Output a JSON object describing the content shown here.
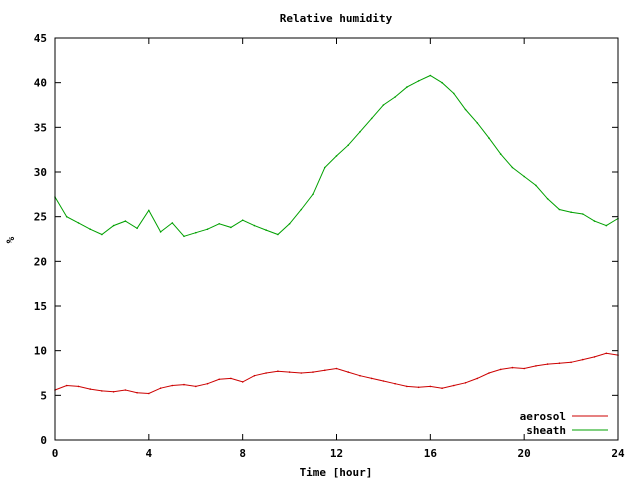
{
  "chart_data": {
    "type": "line",
    "title": "Relative humidity",
    "xlabel": "Time [hour]",
    "ylabel": "%",
    "xlim": [
      0,
      24
    ],
    "ylim": [
      0,
      45
    ],
    "xticks": [
      0,
      4,
      8,
      12,
      16,
      20,
      24
    ],
    "yticks": [
      0,
      5,
      10,
      15,
      20,
      25,
      30,
      35,
      40,
      45
    ],
    "grid": false,
    "legend_position": "bottom-right",
    "series": [
      {
        "name": "aerosol",
        "color": "#cc0000",
        "x": [
          0,
          0.5,
          1,
          1.5,
          2,
          2.5,
          3,
          3.5,
          4,
          4.5,
          5,
          5.5,
          6,
          6.5,
          7,
          7.5,
          8,
          8.5,
          9,
          9.5,
          10,
          10.5,
          11,
          11.5,
          12,
          12.5,
          13,
          13.5,
          14,
          14.5,
          15,
          15.5,
          16,
          16.5,
          17,
          17.5,
          18,
          18.5,
          19,
          19.5,
          20,
          20.5,
          21,
          21.5,
          22,
          22.5,
          23,
          23.5,
          24
        ],
        "y": [
          5.6,
          6.1,
          6.0,
          5.7,
          5.5,
          5.4,
          5.6,
          5.3,
          5.2,
          5.8,
          6.1,
          6.2,
          6.0,
          6.3,
          6.8,
          6.9,
          6.5,
          7.2,
          7.5,
          7.7,
          7.6,
          7.5,
          7.6,
          7.8,
          8.0,
          7.6,
          7.2,
          6.9,
          6.6,
          6.3,
          6.0,
          5.9,
          6.0,
          5.8,
          6.1,
          6.4,
          6.9,
          7.5,
          7.9,
          8.1,
          8.0,
          8.3,
          8.5,
          8.6,
          8.7,
          9.0,
          9.3,
          9.7,
          9.5
        ]
      },
      {
        "name": "sheath",
        "color": "#00a000",
        "x": [
          0,
          0.5,
          1,
          1.5,
          2,
          2.5,
          3,
          3.5,
          4,
          4.5,
          5,
          5.5,
          6,
          6.5,
          7,
          7.5,
          8,
          8.5,
          9,
          9.5,
          10,
          10.5,
          11,
          11.5,
          12,
          12.5,
          13,
          13.5,
          14,
          14.5,
          15,
          15.5,
          16,
          16.5,
          17,
          17.5,
          18,
          18.5,
          19,
          19.5,
          20,
          20.5,
          21,
          21.5,
          22,
          22.5,
          23,
          23.5,
          24
        ],
        "y": [
          27.2,
          25.0,
          24.3,
          23.6,
          23.0,
          24.0,
          24.5,
          23.7,
          25.7,
          23.3,
          24.3,
          22.8,
          23.2,
          23.6,
          24.2,
          23.8,
          24.6,
          24.0,
          23.5,
          23.0,
          24.2,
          25.8,
          27.5,
          30.5,
          31.8,
          33.0,
          34.5,
          36.0,
          37.5,
          38.4,
          39.5,
          40.2,
          40.8,
          40.0,
          38.8,
          37.0,
          35.5,
          33.8,
          32.0,
          30.5,
          29.5,
          28.5,
          27.0,
          25.8,
          25.5,
          25.3,
          24.5,
          24.0,
          24.8
        ]
      }
    ]
  }
}
